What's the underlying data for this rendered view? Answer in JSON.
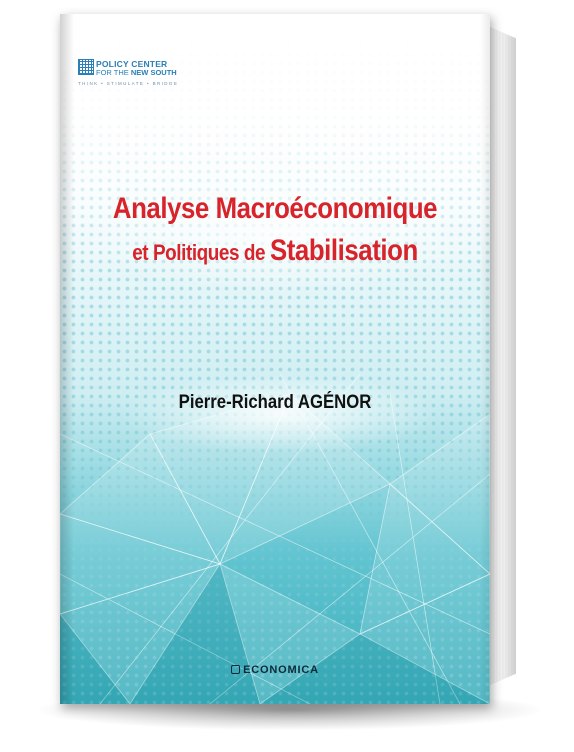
{
  "logo": {
    "line1": "POLICY CENTER",
    "line2_prefix": "FOR THE ",
    "line2_bold": "NEW SOUTH",
    "tagline": "THINK • STIMULATE • BRIDGE",
    "color": "#2a7fb8"
  },
  "title": {
    "line1": "Analyse Macroéconomique",
    "line2_a": "et Politiques ",
    "line2_b": "de ",
    "line2_c": "Stabilisation",
    "color": "#d8232a"
  },
  "author": "Pierre-Richard AGÉNOR",
  "publisher": "ECONOMICA",
  "colors": {
    "cover_gradient_bottom": "#3aaebb",
    "dots": "#78c8d4"
  }
}
